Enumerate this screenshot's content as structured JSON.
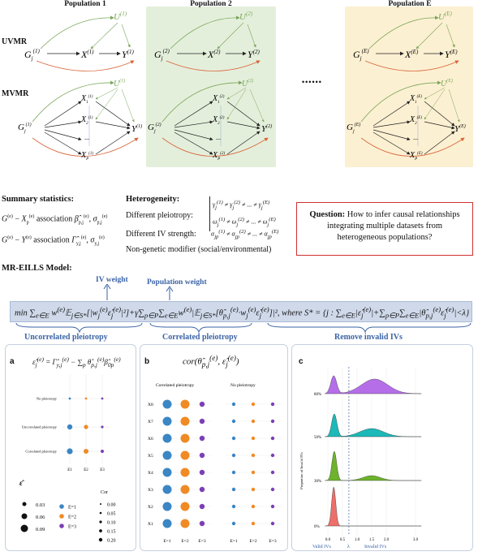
{
  "populations": [
    {
      "title": "Population 1",
      "sup": "(1)",
      "color": "#ffffff"
    },
    {
      "title": "Population 2",
      "sup": "(2)",
      "color": "#e4efdb"
    },
    {
      "title": "Population E",
      "sup": "(E)",
      "color": "#fcf0d2"
    }
  ],
  "rows": {
    "uvmr": "UVMR",
    "mvmr": "MVMR"
  },
  "ellipsis": "••••••",
  "summary": {
    "title": "Summary statistics:",
    "line1_a": "G",
    "line1_b": "association",
    "line2_b": "association"
  },
  "heterogeneity": {
    "title": "Heterogeneity:",
    "pleiotropy": "Different pleiotropy:",
    "ivstrength": "Different IV strength:",
    "modifier": "Non-genetic modifier (social/environmental)"
  },
  "question": {
    "label": "Question:",
    "text": " How to infer causal relationships integrating multiple datasets from heterogeneous populations?"
  },
  "model": {
    "title": "MR-EILLS Model:",
    "iv_weight": "IV weight",
    "pop_weight": "Population weight"
  },
  "sections": {
    "uncorrelated": "Uncorrelated pleiotropy",
    "correlated": "Correlated pleiotropy",
    "remove": "Remove invalid IVs"
  },
  "panel_a": {
    "letter": "a",
    "rows": [
      "No pleiotropy",
      "Uncorrelated pleiotropy",
      "Correlated pleiotropy"
    ],
    "cols": [
      "E1",
      "E2",
      "E3"
    ],
    "size_legend": [
      "0.03",
      "0.06",
      "0.09"
    ],
    "cor_title": "Cor",
    "cor_legend": [
      "0.00",
      "0.05",
      "0.10",
      "0.15",
      "0.20"
    ],
    "color_legend": [
      "E=1",
      "E=2",
      "E=3"
    ]
  },
  "panel_b": {
    "letter": "b",
    "title": "cor",
    "left_title": "Correlated pleiotropy",
    "right_title": "No pleiotropy",
    "rows": [
      "X8",
      "X7",
      "X6",
      "X5",
      "X4",
      "X3",
      "X2",
      "X1"
    ],
    "cols": [
      "E=1",
      "E=2",
      "E=3"
    ]
  },
  "panel_c": {
    "letter": "c",
    "ylabel": "Proportion of Invalid IVs",
    "rows": [
      "80%",
      "50%",
      "30%",
      "0%"
    ],
    "ticks": [
      "0.0",
      "0.5",
      "1.0",
      "1.5",
      "2.0",
      "3.0"
    ],
    "valid": "Valid IVs",
    "lambda": "λ",
    "invalid": "Invalid IVs"
  },
  "colors": {
    "e1": "#3b86c4",
    "e2": "#f08a24",
    "e3": "#7b3fb6",
    "purple": "#b56ee8",
    "teal": "#1db8b8",
    "green": "#6db32c",
    "red": "#ee6f6a"
  }
}
